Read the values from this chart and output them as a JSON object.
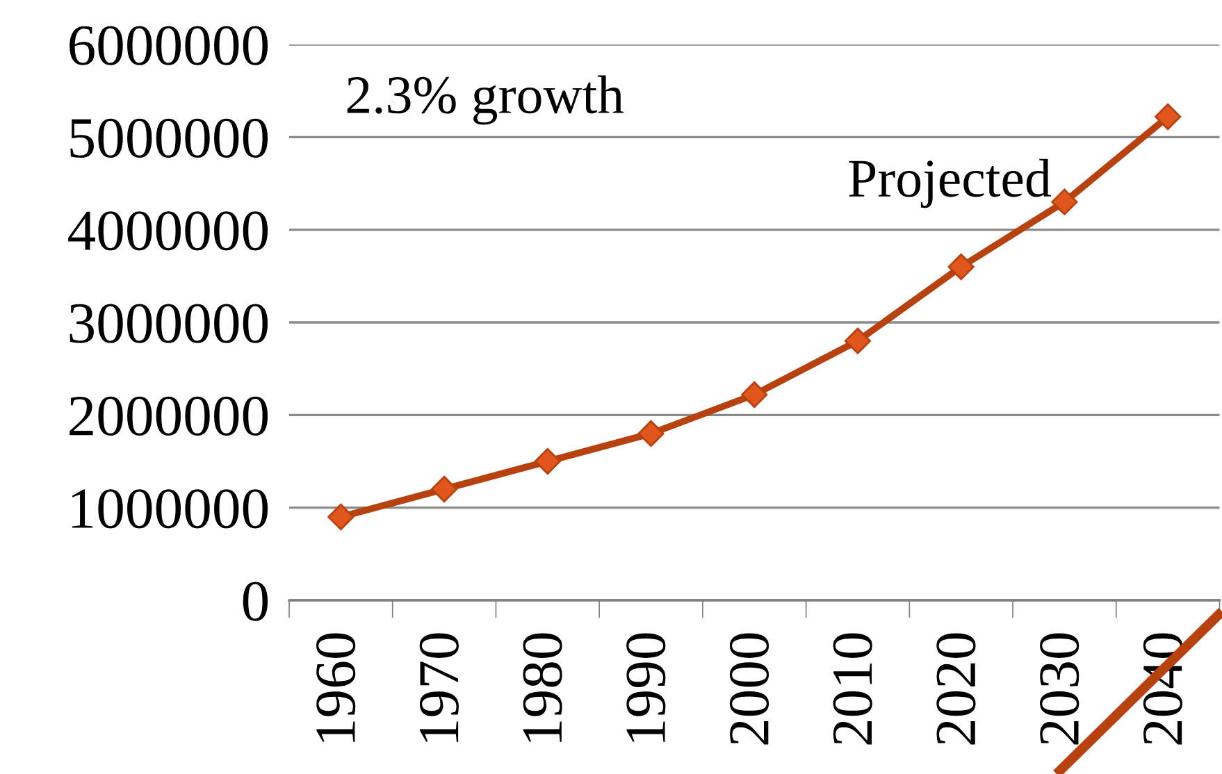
{
  "chart_data": {
    "type": "line",
    "categories": [
      "1960",
      "1970",
      "1980",
      "1990",
      "2000",
      "2010",
      "2020",
      "2030",
      "2040"
    ],
    "series": [
      {
        "color": "#b8420f",
        "values": [
          900000,
          1200000,
          1500000,
          1800000,
          2220000,
          2800000,
          3600000,
          4300000,
          5220000
        ]
      }
    ],
    "ylim": [
      0,
      6000000
    ],
    "yticks": [
      0,
      1000000,
      2000000,
      3000000,
      4000000,
      5000000,
      6000000
    ],
    "grid": "y",
    "marker": "diamond",
    "line_style": "solid",
    "legend": false,
    "annotations": [
      "2.3% growth",
      "Projected"
    ]
  }
}
